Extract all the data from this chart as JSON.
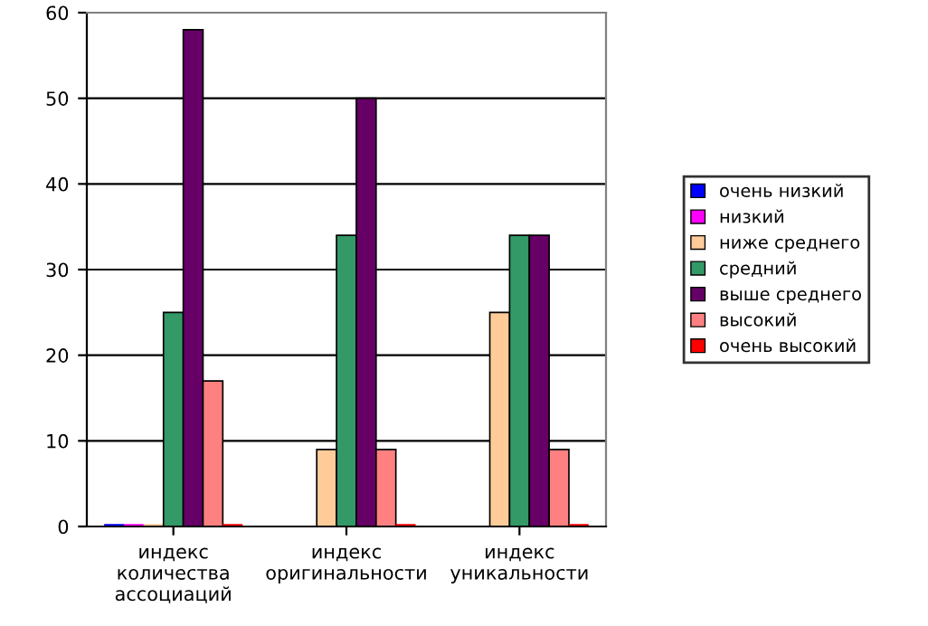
{
  "chart_data": {
    "type": "bar",
    "categories": [
      "индекс\nколичества\nассоциаций",
      "индекс\nоригинальности",
      "индекс\nуникальности"
    ],
    "series": [
      {
        "name": "очень низкий",
        "color": "#0000ff",
        "values": [
          0,
          null,
          null
        ]
      },
      {
        "name": "низкий",
        "color": "#ff00ff",
        "values": [
          0,
          null,
          null
        ]
      },
      {
        "name": "ниже среднего",
        "color": "#ffcc99",
        "values": [
          0,
          9,
          25
        ]
      },
      {
        "name": "средний",
        "color": "#339966",
        "values": [
          25,
          34,
          34
        ]
      },
      {
        "name": "выше среднего",
        "color": "#660066",
        "values": [
          58,
          50,
          34
        ]
      },
      {
        "name": "высокий",
        "color": "#ff8080",
        "values": [
          17,
          9,
          9
        ]
      },
      {
        "name": "очень высокий",
        "color": "#ff0000",
        "values": [
          0,
          0,
          0
        ]
      }
    ],
    "ylim": [
      0,
      60
    ],
    "yticks": [
      0,
      10,
      20,
      30,
      40,
      50,
      60
    ],
    "grid": "y",
    "legend": "right"
  }
}
